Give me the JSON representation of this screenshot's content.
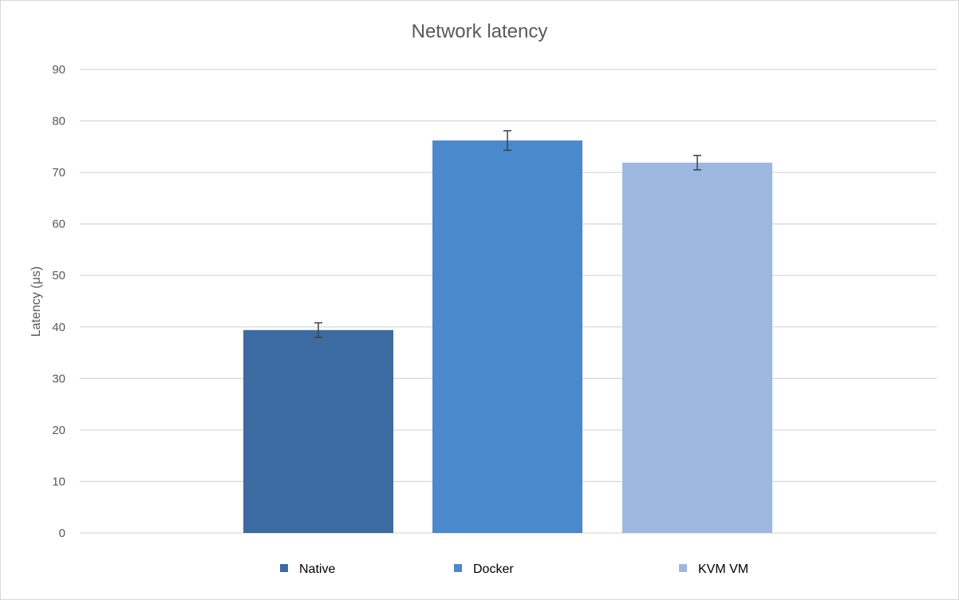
{
  "chart_data": {
    "type": "bar",
    "title": "Network latency",
    "ylabel": "Latency (μs)",
    "xlabel": "",
    "ylim": [
      0,
      90
    ],
    "yticks": [
      0,
      10,
      20,
      30,
      40,
      50,
      60,
      70,
      80,
      90
    ],
    "grid": true,
    "legend_position": "bottom",
    "series": [
      {
        "name": "Native",
        "value": 39.4,
        "error": 1.4,
        "color": "#3b6ba1"
      },
      {
        "name": "Docker",
        "value": 76.2,
        "error": 1.9,
        "color": "#4a89cb"
      },
      {
        "name": "KVM VM",
        "value": 71.9,
        "error": 1.4,
        "color": "#9db8e0"
      }
    ]
  }
}
